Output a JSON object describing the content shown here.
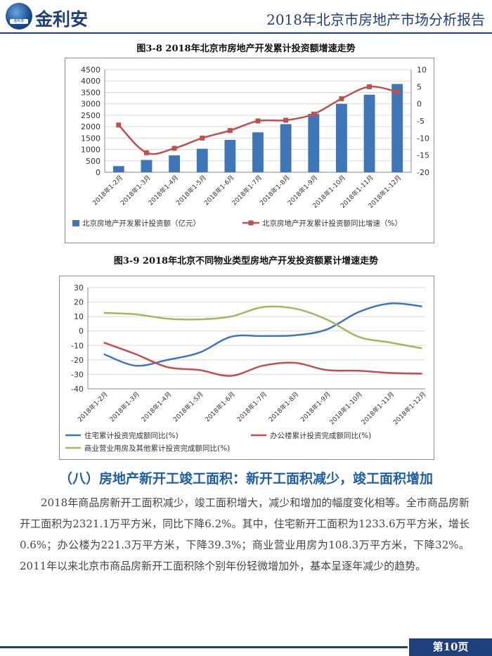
{
  "header": {
    "brand": "金利安",
    "report_title": "2018年北京市房地产市场分析报告",
    "logo_band_text": "金利安"
  },
  "chart1_title": "图3-8 2018年北京市房地产开发累计投资额增速走势",
  "chart2_title": "图3-9 2018年北京不同物业类型房地产开发投资额累计增速走势",
  "chart_data": [
    {
      "type": "bar",
      "categories": [
        "2018年1-2月",
        "2018年1-3月",
        "2018年1-4月",
        "2018年1-5月",
        "2018年1-6月",
        "2018年1-7月",
        "2018年1-8月",
        "2018年1-9月",
        "2018年1-10月",
        "2018年1-11月",
        "2018年1-12月"
      ],
      "series": [
        {
          "name": "北京房地产开发累计投资额（亿元）",
          "type": "bar",
          "axis": "left",
          "color": "#3f76b8",
          "values": [
            270,
            540,
            740,
            1030,
            1420,
            1750,
            2110,
            2560,
            3000,
            3400,
            3870
          ]
        },
        {
          "name": "北京房地产开发累计投资额同比增速（%）",
          "type": "line",
          "axis": "right",
          "color": "#c0504d",
          "values": [
            -6.2,
            -14.3,
            -13.0,
            -10.0,
            -7.8,
            -5.0,
            -4.8,
            -3.0,
            1.5,
            5.0,
            3.5
          ]
        }
      ],
      "y_left": {
        "min": 0,
        "max": 4500,
        "ticks": [
          "0",
          "500",
          "1000",
          "1500",
          "2000",
          "2500",
          "3000",
          "3500",
          "4000",
          "4500"
        ]
      },
      "y_right": {
        "min": -20,
        "max": 10,
        "ticks": [
          "-20",
          "-15",
          "-10",
          "-5",
          "0",
          "5",
          "10"
        ]
      }
    },
    {
      "type": "line",
      "categories": [
        "2018年1-2月",
        "2018年1-3月",
        "2018年1-4月",
        "2018年1-5月",
        "2018年1-6月",
        "2018年1-7月",
        "2018年1-8月",
        "2018年1-9月",
        "2018年1-10月",
        "2018年1-11月",
        "2018年1-12月"
      ],
      "series": [
        {
          "name": "住宅累计投资完成额同比(%)",
          "color": "#3f76b8",
          "values": [
            -16,
            -24,
            -20,
            -15,
            -4,
            -3.5,
            -3,
            1,
            13,
            19,
            17
          ]
        },
        {
          "name": "办公楼累计投资完成额同比(%)",
          "color": "#c0504d",
          "values": [
            -8,
            -16,
            -25,
            -27,
            -31,
            -24,
            -22,
            -27,
            -27.5,
            -29,
            -29.5
          ]
        },
        {
          "name": "商业营业用房及其他累计投资完成额同比(%)",
          "color": "#9bbb59",
          "values": [
            12.5,
            11.5,
            8.5,
            8,
            10,
            16.5,
            15.5,
            8,
            -4,
            -8,
            -12
          ]
        }
      ],
      "y": {
        "min": -40,
        "max": 30,
        "ticks": [
          "-40",
          "-30",
          "-20",
          "-10",
          "0",
          "10",
          "20",
          "30"
        ]
      }
    }
  ],
  "section_heading": "（八）房地产新开工竣工面积：新开工面积减少，竣工面积增加",
  "body_text": "2018年商品房新开工面积减少，竣工面积增大，减少和增加的幅度变化相等。全市商品房新开工面积为2321.1万平方米，同比下降6.2%。其中，住宅新开工面积为1233.6万平方米，增长0.6%；办公楼为221.3万平方米，下降39.3%；商业营业用房为108.3万平方米，下降32%。2011年以来北京市商品房新开工面积除个别年份轻微增加外，基本呈逐年减少的趋势。",
  "footer": {
    "page_label": "第10页"
  }
}
